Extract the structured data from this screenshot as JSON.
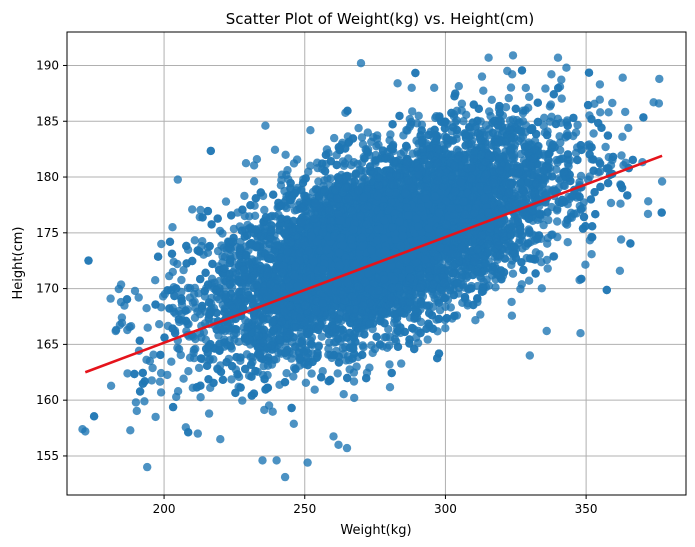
{
  "chart_data": {
    "type": "scatter",
    "title": "Scatter Plot of Weight(kg) vs. Height(cm)",
    "xlabel": "Weight(kg)",
    "ylabel": "Height(cm)",
    "xlim": [
      165.5,
      385.5
    ],
    "ylim": [
      151.5,
      193
    ],
    "xticks": [
      200,
      250,
      300,
      350
    ],
    "yticks": [
      155,
      160,
      165,
      170,
      175,
      180,
      185,
      190
    ],
    "grid": true,
    "point_color": "#1f77b4",
    "line_color": "#e5131b",
    "regression_line": {
      "x": [
        172,
        377
      ],
      "y": [
        162.5,
        181.9
      ]
    },
    "cloud": {
      "count": 9000,
      "x_mean": 278,
      "x_std": 31,
      "x_min": 172,
      "x_max": 377,
      "y_mean": 174.2,
      "y_std": 4.9,
      "y_min": 153,
      "y_max": 191,
      "correlation": 0.6
    },
    "outlier_points": [
      {
        "x": 171,
        "y": 157.4
      },
      {
        "x": 172,
        "y": 157.2
      },
      {
        "x": 181,
        "y": 169.1
      },
      {
        "x": 183,
        "y": 166.3
      },
      {
        "x": 185,
        "y": 167.4
      },
      {
        "x": 187,
        "y": 162.4
      },
      {
        "x": 188,
        "y": 157.3
      },
      {
        "x": 190,
        "y": 159.8
      },
      {
        "x": 191,
        "y": 169.2
      },
      {
        "x": 193,
        "y": 159.9
      },
      {
        "x": 194,
        "y": 154.0
      },
      {
        "x": 197,
        "y": 158.5
      },
      {
        "x": 199,
        "y": 174.0
      },
      {
        "x": 203,
        "y": 175.5
      },
      {
        "x": 205,
        "y": 160.8
      },
      {
        "x": 210,
        "y": 177.1
      },
      {
        "x": 212,
        "y": 157.0
      },
      {
        "x": 216,
        "y": 158.8
      },
      {
        "x": 220,
        "y": 156.5
      },
      {
        "x": 222,
        "y": 177.8
      },
      {
        "x": 233,
        "y": 181.6
      },
      {
        "x": 235,
        "y": 154.6
      },
      {
        "x": 236,
        "y": 184.6
      },
      {
        "x": 240,
        "y": 154.6
      },
      {
        "x": 243,
        "y": 153.1
      },
      {
        "x": 251,
        "y": 154.4
      },
      {
        "x": 252,
        "y": 184.2
      },
      {
        "x": 262,
        "y": 156.0
      },
      {
        "x": 265,
        "y": 155.7
      },
      {
        "x": 270,
        "y": 190.2
      },
      {
        "x": 283,
        "y": 188.4
      },
      {
        "x": 288,
        "y": 188.0
      },
      {
        "x": 296,
        "y": 188.0
      },
      {
        "x": 313,
        "y": 189.0
      },
      {
        "x": 322,
        "y": 189.5
      },
      {
        "x": 324,
        "y": 190.9
      },
      {
        "x": 330,
        "y": 164.0
      },
      {
        "x": 336,
        "y": 166.2
      },
      {
        "x": 340,
        "y": 190.7
      },
      {
        "x": 343,
        "y": 189.8
      },
      {
        "x": 348,
        "y": 166.0
      },
      {
        "x": 355,
        "y": 185.8
      },
      {
        "x": 358,
        "y": 185.8
      },
      {
        "x": 362,
        "y": 171.6
      },
      {
        "x": 363,
        "y": 188.9
      },
      {
        "x": 365,
        "y": 184.4
      },
      {
        "x": 372,
        "y": 176.7
      },
      {
        "x": 374,
        "y": 186.7
      },
      {
        "x": 376,
        "y": 188.8
      },
      {
        "x": 377,
        "y": 179.6
      }
    ]
  }
}
